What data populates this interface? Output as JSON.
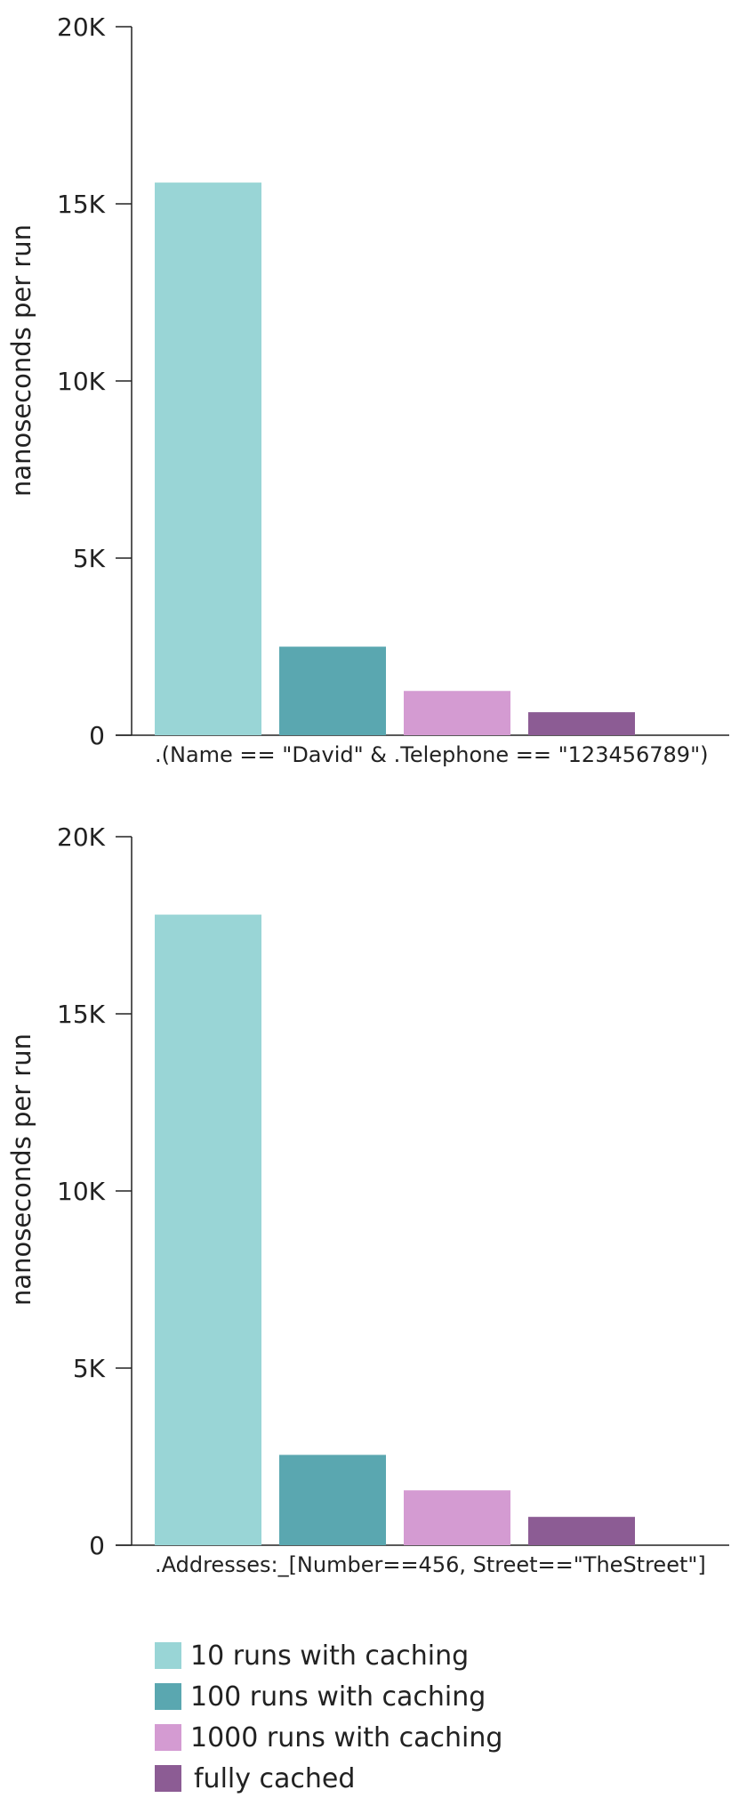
{
  "chart_data": [
    {
      "type": "bar",
      "ylabel": "nanoseconds per run",
      "ylim": [
        0,
        20000
      ],
      "yticks": [
        "20K",
        "15K",
        "10K",
        "5K",
        "0"
      ],
      "categories": [
        ".(Name == \"David\" & .Telephone == \"123456789\")"
      ],
      "series": [
        {
          "name": "10 runs with caching",
          "values": [
            15600
          ]
        },
        {
          "name": "100 runs with caching",
          "values": [
            2500
          ]
        },
        {
          "name": "1000 runs with caching",
          "values": [
            1250
          ]
        },
        {
          "name": "fully cached",
          "values": [
            650
          ]
        }
      ]
    },
    {
      "type": "bar",
      "ylabel": "nanoseconds per run",
      "ylim": [
        0,
        20000
      ],
      "yticks": [
        "20K",
        "15K",
        "10K",
        "5K",
        "0"
      ],
      "categories": [
        ".Addresses:_[Number==456, Street==\"TheStreet\"]"
      ],
      "series": [
        {
          "name": "10 runs with caching",
          "values": [
            17800
          ]
        },
        {
          "name": "100 runs with caching",
          "values": [
            2550
          ]
        },
        {
          "name": "1000 runs with caching",
          "values": [
            1550
          ]
        },
        {
          "name": "fully cached",
          "values": [
            800
          ]
        }
      ]
    }
  ],
  "legend": {
    "items": [
      {
        "label": "10 runs with caching",
        "color": "#99d5d6"
      },
      {
        "label": "100 runs with caching",
        "color": "#5aa7b0"
      },
      {
        "label": "1000 runs with caching",
        "color": "#d49bd2"
      },
      {
        "label": "fully cached",
        "color": "#8c5c94"
      }
    ]
  }
}
